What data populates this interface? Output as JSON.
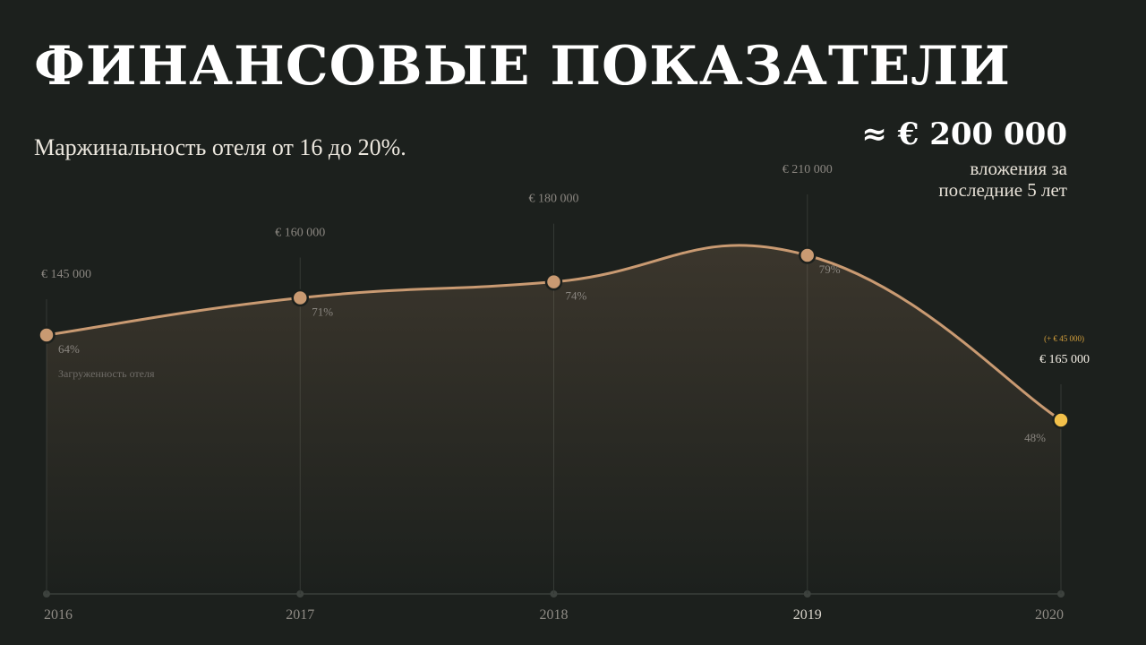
{
  "title": "ФИНАНСОВЫЕ ПОКАЗАТЕЛИ",
  "subtitle": "Маржинальность отеля от 16 до 20%.",
  "investment": {
    "amount": "≈ € 200 000",
    "caption": "вложения за последние 5 лет"
  },
  "colors": {
    "background": "#1c201d",
    "line": "#c99a72",
    "point": "#c99a72",
    "highlight_point": "#f2c04a",
    "delta_text": "#d6a13c"
  },
  "chart_data": {
    "type": "area",
    "x": [
      "2016",
      "2017",
      "2018",
      "2019",
      "2020"
    ],
    "series": [
      {
        "name": "Загруженность отеля",
        "values": [
          64,
          71,
          74,
          79,
          48
        ],
        "value_labels": [
          "64%",
          "71%",
          "74%",
          "79%",
          "48%"
        ]
      }
    ],
    "revenue_labels": [
      "€ 145 000",
      "€ 160 000",
      "€ 180 000",
      "€ 210 000",
      "€ 165 000"
    ],
    "annotations": [
      {
        "x": "2020",
        "text": "(+ € 45 000)"
      }
    ],
    "highlight_x": "2020",
    "grid": false,
    "legend": "none"
  }
}
